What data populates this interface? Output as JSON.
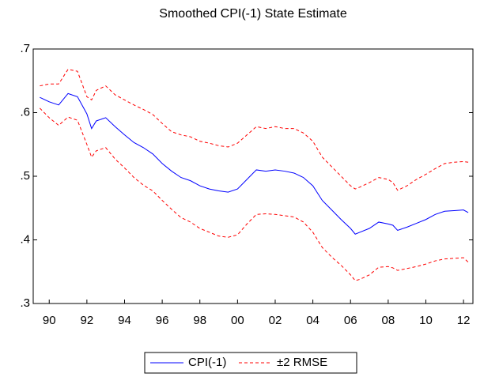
{
  "chart_data": {
    "type": "line",
    "title": "Smoothed CPI(-1) State Estimate",
    "x": [
      1989.5,
      1990,
      1990.5,
      1991,
      1991.5,
      1992,
      1992.25,
      1992.5,
      1993,
      1993.5,
      1994,
      1994.5,
      1995,
      1995.5,
      1996,
      1996.5,
      1997,
      1997.5,
      1998,
      1998.5,
      1999,
      1999.5,
      2000,
      2000.5,
      2001,
      2001.5,
      2002,
      2002.5,
      2003,
      2003.5,
      2004,
      2004.5,
      2005,
      2005.5,
      2006,
      2006.25,
      2006.5,
      2007,
      2007.5,
      2008,
      2008.25,
      2008.5,
      2009,
      2009.5,
      2010,
      2010.5,
      2011,
      2011.5,
      2012,
      2012.25
    ],
    "series": [
      {
        "name": "CPI(-1)",
        "color": "#0000ff",
        "dash": false,
        "values": [
          0.624,
          0.617,
          0.612,
          0.63,
          0.625,
          0.598,
          0.575,
          0.587,
          0.592,
          0.578,
          0.565,
          0.553,
          0.545,
          0.535,
          0.52,
          0.508,
          0.498,
          0.493,
          0.485,
          0.48,
          0.477,
          0.475,
          0.48,
          0.495,
          0.51,
          0.508,
          0.51,
          0.508,
          0.505,
          0.498,
          0.485,
          0.462,
          0.447,
          0.432,
          0.418,
          0.409,
          0.412,
          0.418,
          0.428,
          0.425,
          0.423,
          0.415,
          0.42,
          0.426,
          0.432,
          0.44,
          0.445,
          0.446,
          0.447,
          0.443
        ]
      },
      {
        "name": "±2 RMSE",
        "color": "#ff0000",
        "dash": true,
        "upper": [
          0.642,
          0.645,
          0.645,
          0.668,
          0.665,
          0.625,
          0.62,
          0.635,
          0.642,
          0.628,
          0.62,
          0.612,
          0.605,
          0.597,
          0.583,
          0.57,
          0.565,
          0.562,
          0.555,
          0.552,
          0.548,
          0.546,
          0.552,
          0.565,
          0.578,
          0.575,
          0.578,
          0.575,
          0.575,
          0.568,
          0.555,
          0.53,
          0.515,
          0.5,
          0.485,
          0.48,
          0.483,
          0.49,
          0.498,
          0.495,
          0.49,
          0.478,
          0.485,
          0.495,
          0.503,
          0.512,
          0.52,
          0.522,
          0.523,
          0.522
        ],
        "lower": [
          0.607,
          0.592,
          0.58,
          0.593,
          0.588,
          0.55,
          0.53,
          0.54,
          0.545,
          0.527,
          0.513,
          0.498,
          0.486,
          0.477,
          0.462,
          0.448,
          0.435,
          0.428,
          0.418,
          0.412,
          0.406,
          0.404,
          0.408,
          0.425,
          0.44,
          0.441,
          0.44,
          0.438,
          0.436,
          0.428,
          0.412,
          0.388,
          0.373,
          0.36,
          0.345,
          0.336,
          0.338,
          0.345,
          0.357,
          0.358,
          0.356,
          0.352,
          0.355,
          0.358,
          0.362,
          0.367,
          0.37,
          0.371,
          0.372,
          0.365
        ]
      }
    ],
    "xlim": [
      1989.15,
      2012.5
    ],
    "xticks": [
      {
        "value": 1990,
        "label": "90"
      },
      {
        "value": 1992,
        "label": "92"
      },
      {
        "value": 1994,
        "label": "94"
      },
      {
        "value": 1996,
        "label": "96"
      },
      {
        "value": 1998,
        "label": "98"
      },
      {
        "value": 2000,
        "label": "00"
      },
      {
        "value": 2002,
        "label": "02"
      },
      {
        "value": 2004,
        "label": "04"
      },
      {
        "value": 2006,
        "label": "06"
      },
      {
        "value": 2008,
        "label": "08"
      },
      {
        "value": 2010,
        "label": "10"
      },
      {
        "value": 2012,
        "label": "12"
      }
    ],
    "ylim": [
      0.3,
      0.7
    ],
    "yticks": [
      {
        "value": 0.3,
        "label": ".3"
      },
      {
        "value": 0.4,
        "label": ".4"
      },
      {
        "value": 0.5,
        "label": ".5"
      },
      {
        "value": 0.6,
        "label": ".6"
      },
      {
        "value": 0.7,
        "label": ".7"
      }
    ],
    "grid": false
  }
}
